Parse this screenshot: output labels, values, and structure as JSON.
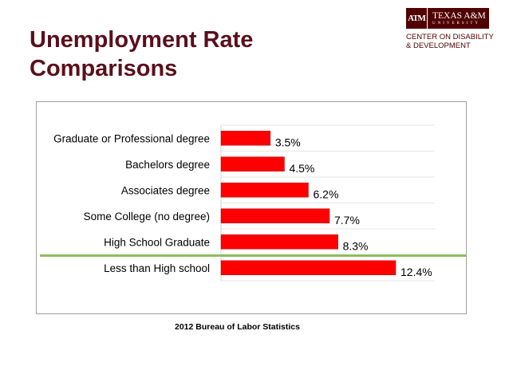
{
  "slide": {
    "title_line1": "Unemployment Rate",
    "title_line2": "Comparisons",
    "source": "2012 Bureau of Labor Statistics"
  },
  "logo": {
    "mark": "ATM",
    "name": "TEXAS A&M",
    "university": "UNIVERSITY",
    "center_line1": "CENTER ON DISABILITY",
    "center_line2": "& DEVELOPMENT",
    "color": "#500000"
  },
  "colors": {
    "title": "#5a0f1c",
    "bar": "#ff0000",
    "divider": "#8cbf5a"
  },
  "chart_data": {
    "type": "bar",
    "orientation": "horizontal",
    "categories": [
      "Graduate or Professional degree",
      "Bachelors degree",
      "Associates degree",
      "Some College (no degree)",
      "High School Graduate",
      "Less than High school"
    ],
    "values": [
      3.5,
      4.5,
      6.2,
      7.7,
      8.3,
      12.4
    ],
    "value_labels": [
      "3.5%",
      "4.5%",
      "6.2%",
      "7.7%",
      "8.3%",
      "12.4%"
    ],
    "xlim": [
      0,
      15
    ],
    "grid": true,
    "legend": "none"
  }
}
